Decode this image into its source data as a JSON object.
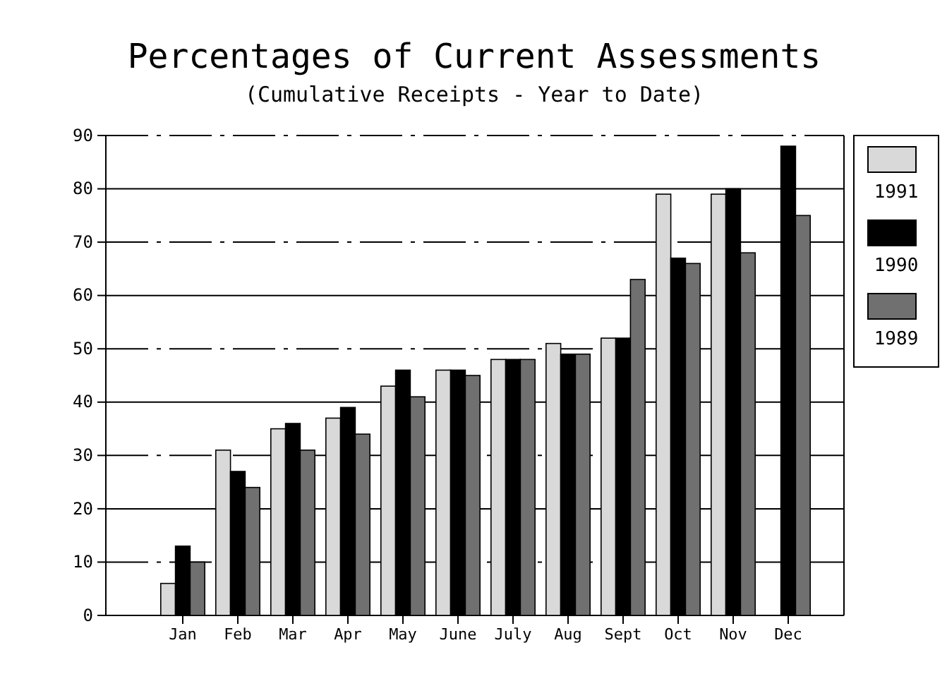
{
  "chart_data": {
    "type": "bar",
    "title": "Percentages of Current Assessments",
    "subtitle": "(Cumulative Receipts - Year to Date)",
    "categories": [
      "Jan",
      "Feb",
      "Mar",
      "Apr",
      "May",
      "June",
      "July",
      "Aug",
      "Sept",
      "Oct",
      "Nov",
      "Dec"
    ],
    "series": [
      {
        "name": "1991",
        "color": "#d9d9d9",
        "values": [
          6,
          31,
          35,
          37,
          43,
          46,
          48,
          51,
          52,
          79,
          79,
          null
        ]
      },
      {
        "name": "1990",
        "color": "#000000",
        "values": [
          13,
          27,
          36,
          39,
          46,
          46,
          48,
          49,
          52,
          67,
          80,
          88
        ]
      },
      {
        "name": "1989",
        "color": "#707070",
        "values": [
          10,
          24,
          31,
          34,
          41,
          45,
          48,
          49,
          63,
          66,
          68,
          75
        ]
      }
    ],
    "ylim": [
      0,
      90
    ],
    "yticks": [
      0,
      10,
      20,
      30,
      40,
      50,
      60,
      70,
      80,
      90
    ],
    "grid": "y",
    "legend": "right"
  }
}
